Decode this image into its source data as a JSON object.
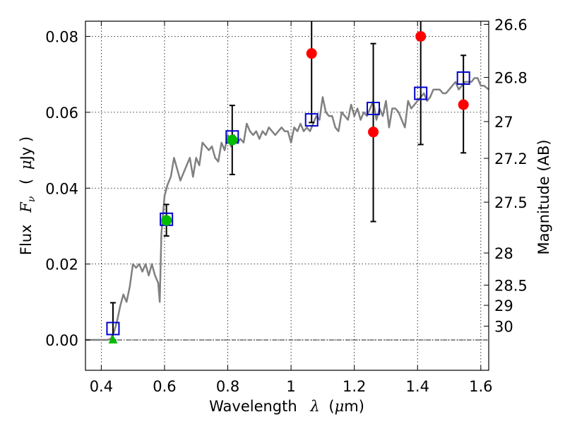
{
  "chart_data": {
    "type": "scatter",
    "title": "",
    "xlabel": "Wavelength",
    "xlabel_symbol": "λ",
    "xlabel_unit": "(",
    "xlabel_unit_symbol": "μ",
    "xlabel_unit_end": "m)",
    "ylabel": "Flux",
    "ylabel_symbol": "F",
    "ylabel_subscript": "ν",
    "ylabel_unit_open": "(",
    "ylabel_unit_symbol": "μ",
    "ylabel_unit_end": "Jy )",
    "y2label": "Magnitude (AB)",
    "xlim": [
      0.35,
      1.625
    ],
    "ylim": [
      -0.008,
      0.084
    ],
    "grid": true,
    "x_ticks": [
      {
        "value": 0.4,
        "label": "0.4"
      },
      {
        "value": 0.6,
        "label": "0.6"
      },
      {
        "value": 0.8,
        "label": "0.8"
      },
      {
        "value": 1.0,
        "label": "1"
      },
      {
        "value": 1.2,
        "label": "1.2"
      },
      {
        "value": 1.4,
        "label": "1.4"
      },
      {
        "value": 1.6,
        "label": "1.6"
      }
    ],
    "y_ticks": [
      {
        "value": 0.0,
        "label": "0.00"
      },
      {
        "value": 0.02,
        "label": "0.02"
      },
      {
        "value": 0.04,
        "label": "0.04"
      },
      {
        "value": 0.06,
        "label": "0.06"
      },
      {
        "value": 0.08,
        "label": "0.08"
      }
    ],
    "y2_ticks": [
      {
        "mag": 26.6,
        "label": "26.6"
      },
      {
        "mag": 26.8,
        "label": "26.8"
      },
      {
        "mag": 27.0,
        "label": "27"
      },
      {
        "mag": 27.2,
        "label": "27.2"
      },
      {
        "mag": 27.5,
        "label": "27.5"
      },
      {
        "mag": 28.0,
        "label": "28"
      },
      {
        "mag": 28.5,
        "label": "28.5"
      },
      {
        "mag": 29.0,
        "label": "29"
      },
      {
        "mag": 30.0,
        "label": "30"
      }
    ],
    "zero_line": 0.0,
    "template_spectrum": {
      "color": "#808080",
      "x": [
        0.35,
        0.38,
        0.4,
        0.42,
        0.43,
        0.44,
        0.45,
        0.46,
        0.47,
        0.48,
        0.49,
        0.5,
        0.51,
        0.52,
        0.53,
        0.54,
        0.55,
        0.56,
        0.57,
        0.58,
        0.585,
        0.59,
        0.6,
        0.61,
        0.62,
        0.63,
        0.64,
        0.65,
        0.66,
        0.67,
        0.68,
        0.69,
        0.7,
        0.71,
        0.72,
        0.73,
        0.74,
        0.75,
        0.76,
        0.77,
        0.78,
        0.79,
        0.8,
        0.81,
        0.82,
        0.83,
        0.84,
        0.85,
        0.86,
        0.87,
        0.88,
        0.89,
        0.9,
        0.91,
        0.92,
        0.93,
        0.94,
        0.95,
        0.96,
        0.97,
        0.98,
        0.99,
        1.0,
        1.01,
        1.02,
        1.03,
        1.04,
        1.05,
        1.06,
        1.07,
        1.08,
        1.09,
        1.1,
        1.11,
        1.12,
        1.13,
        1.14,
        1.15,
        1.16,
        1.17,
        1.18,
        1.19,
        1.2,
        1.21,
        1.22,
        1.23,
        1.24,
        1.25,
        1.26,
        1.27,
        1.28,
        1.29,
        1.3,
        1.31,
        1.32,
        1.33,
        1.34,
        1.35,
        1.36,
        1.37,
        1.38,
        1.39,
        1.4,
        1.41,
        1.42,
        1.43,
        1.44,
        1.45,
        1.46,
        1.47,
        1.48,
        1.49,
        1.5,
        1.51,
        1.52,
        1.53,
        1.54,
        1.55,
        1.56,
        1.57,
        1.58,
        1.59,
        1.6,
        1.61,
        1.625
      ],
      "y": [
        0.0,
        0.0,
        0.0,
        0.0,
        0.0003,
        0.002,
        0.005,
        0.009,
        0.012,
        0.01,
        0.014,
        0.02,
        0.019,
        0.02,
        0.018,
        0.02,
        0.017,
        0.02,
        0.017,
        0.015,
        0.01,
        0.028,
        0.038,
        0.041,
        0.043,
        0.048,
        0.045,
        0.042,
        0.044,
        0.046,
        0.048,
        0.043,
        0.048,
        0.046,
        0.052,
        0.051,
        0.05,
        0.051,
        0.048,
        0.047,
        0.052,
        0.05,
        0.054,
        0.051,
        0.054,
        0.052,
        0.053,
        0.052,
        0.057,
        0.055,
        0.054,
        0.055,
        0.053,
        0.055,
        0.054,
        0.056,
        0.055,
        0.054,
        0.055,
        0.056,
        0.055,
        0.055,
        0.052,
        0.056,
        0.055,
        0.057,
        0.055,
        0.056,
        0.055,
        0.057,
        0.059,
        0.058,
        0.064,
        0.06,
        0.059,
        0.059,
        0.056,
        0.055,
        0.06,
        0.059,
        0.058,
        0.062,
        0.059,
        0.061,
        0.058,
        0.06,
        0.059,
        0.061,
        0.063,
        0.058,
        0.061,
        0.059,
        0.063,
        0.056,
        0.061,
        0.061,
        0.06,
        0.058,
        0.056,
        0.063,
        0.061,
        0.062,
        0.063,
        0.064,
        0.065,
        0.063,
        0.064,
        0.066,
        0.066,
        0.066,
        0.065,
        0.065,
        0.066,
        0.067,
        0.068,
        0.066,
        0.067,
        0.068,
        0.068,
        0.068,
        0.069,
        0.069,
        0.067,
        0.067,
        0.066
      ]
    },
    "series": [
      {
        "marker": "square",
        "color": "#0000cc",
        "points": [
          {
            "x": 0.437,
            "y": 0.003
          },
          {
            "x": 0.606,
            "y": 0.0318
          },
          {
            "x": 0.814,
            "y": 0.0535
          },
          {
            "x": 1.065,
            "y": 0.058
          },
          {
            "x": 1.26,
            "y": 0.061
          },
          {
            "x": 1.41,
            "y": 0.065
          },
          {
            "x": 1.545,
            "y": 0.069
          }
        ]
      },
      {
        "marker": "circle",
        "color": "#00bb00",
        "points": [
          {
            "x": 0.606,
            "y": 0.0315
          },
          {
            "x": 0.814,
            "y": 0.0527
          }
        ]
      },
      {
        "marker": "circle",
        "color": "#ff0000",
        "points": [
          {
            "x": 1.065,
            "y": 0.0755
          },
          {
            "x": 1.26,
            "y": 0.0548
          },
          {
            "x": 1.41,
            "y": 0.08
          },
          {
            "x": 1.545,
            "y": 0.062
          }
        ]
      },
      {
        "marker": "triangle",
        "color": "#00bb00",
        "points": [
          {
            "x": 0.437,
            "y": 0.0
          }
        ]
      }
    ],
    "errorbars": [
      {
        "x": 0.437,
        "y_low": 0.0,
        "y_high": 0.0098
      },
      {
        "x": 0.606,
        "y_low": 0.0274,
        "y_high": 0.0357
      },
      {
        "x": 0.814,
        "y_low": 0.0436,
        "y_high": 0.0618
      },
      {
        "x": 1.065,
        "y_low": 0.0573,
        "y_high": 0.084
      },
      {
        "x": 1.26,
        "y_low": 0.0312,
        "y_high": 0.0781
      },
      {
        "x": 1.41,
        "y_low": 0.0515,
        "y_high": 0.084
      },
      {
        "x": 1.545,
        "y_low": 0.0493,
        "y_high": 0.075
      }
    ]
  }
}
